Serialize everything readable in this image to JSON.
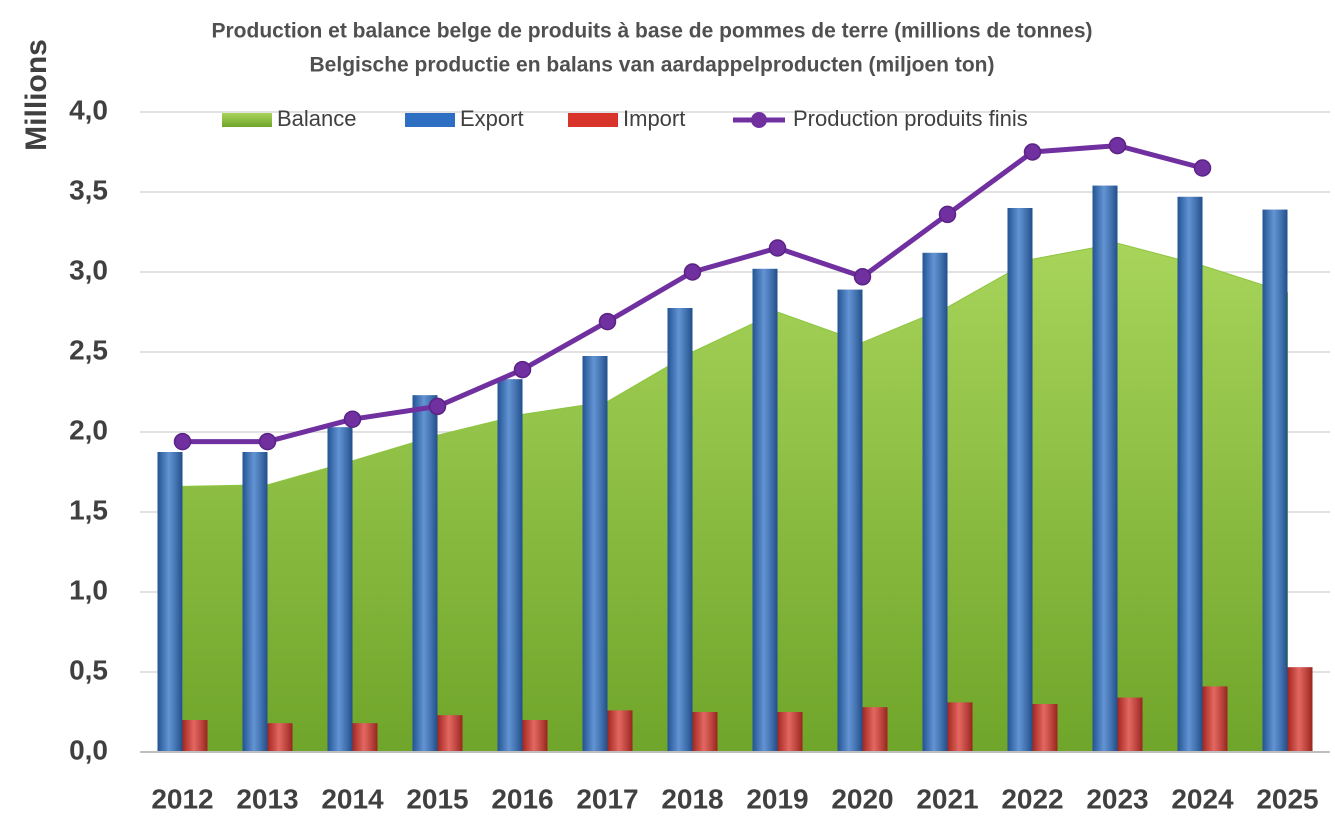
{
  "chart_data": {
    "type": "bar",
    "title": "Production et balance belge de produits à base de pommes de terre (millions de tonnes)",
    "subtitle": "Belgische productie en balans van aardappelproducten (miljoen ton)",
    "y_label": "Millions",
    "categories": [
      "2012",
      "2013",
      "2014",
      "2015",
      "2016",
      "2017",
      "2018",
      "2019",
      "2020",
      "2021",
      "2022",
      "2023",
      "2024",
      "2025"
    ],
    "ylim": [
      0,
      4
    ],
    "yticks": [
      {
        "value": 0,
        "label": "0,0"
      },
      {
        "value": 0.5,
        "label": "0,5"
      },
      {
        "value": 1,
        "label": "1,0"
      },
      {
        "value": 1.5,
        "label": "1,5"
      },
      {
        "value": 2,
        "label": "2,0"
      },
      {
        "value": 2.5,
        "label": "2,5"
      },
      {
        "value": 3,
        "label": "3,0"
      },
      {
        "value": 3.5,
        "label": "3,5"
      },
      {
        "value": 4,
        "label": "4,0"
      }
    ],
    "grid": true,
    "legend": "top",
    "series": [
      {
        "name": "Balance",
        "type": "area",
        "color": "#8dc63f",
        "values": [
          1.66,
          1.67,
          1.82,
          1.98,
          2.11,
          2.19,
          2.5,
          2.75,
          2.56,
          2.78,
          3.08,
          3.18,
          3.04,
          2.87
        ]
      },
      {
        "name": "Export",
        "type": "bar",
        "color": "#2e6fc4",
        "values": [
          1.875,
          1.875,
          2.03,
          2.23,
          2.33,
          2.475,
          2.775,
          3.02,
          2.89,
          3.12,
          3.4,
          3.54,
          3.47,
          3.39
        ]
      },
      {
        "name": "Import",
        "type": "bar",
        "color": "#d9342b",
        "values": [
          0.2,
          0.18,
          0.18,
          0.23,
          0.2,
          0.26,
          0.25,
          0.25,
          0.28,
          0.31,
          0.3,
          0.34,
          0.41,
          0.53
        ]
      },
      {
        "name": "Production produits finis",
        "type": "line",
        "color": "#7030a0",
        "values": [
          1.94,
          1.94,
          2.08,
          2.16,
          2.39,
          2.69,
          3.0,
          3.15,
          2.97,
          3.36,
          3.75,
          3.79,
          3.65,
          null
        ]
      }
    ]
  }
}
